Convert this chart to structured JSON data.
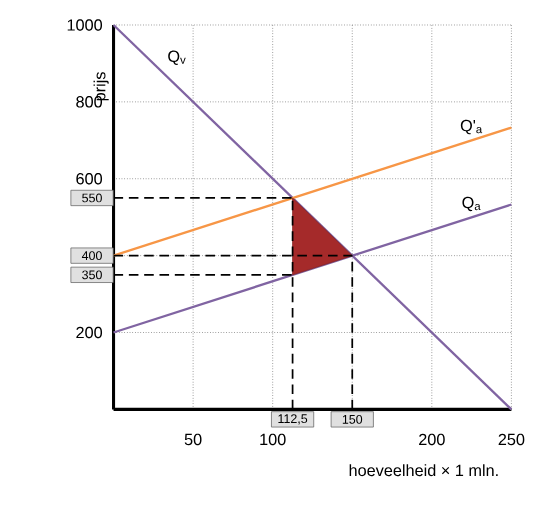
{
  "chart_data": {
    "type": "line",
    "xlabel": "hoeveelheid × 1 mln.",
    "ylabel": "prijs",
    "xlim": [
      0,
      250
    ],
    "ylim": [
      0,
      1000
    ],
    "xticks": [
      50,
      100,
      {
        "value": 150,
        "label": null
      },
      200,
      250
    ],
    "yticks": [
      200,
      {
        "value": 400,
        "label": null
      },
      600,
      800,
      1000
    ],
    "grid": true,
    "marker": "none",
    "line_style": "solid",
    "series": [
      {
        "name": "Q$_{v}$",
        "color": "#8064a2",
        "x": [
          0,
          250
        ],
        "values": [
          1000,
          0
        ]
      },
      {
        "name": "Q'$_{a}$",
        "color": "#f79646",
        "x": [
          0,
          250
        ],
        "values": [
          400,
          733
        ]
      },
      {
        "name": "Q$_{a}$",
        "color": "#8064a2",
        "x": [
          0,
          250
        ],
        "values": [
          200,
          533
        ]
      },
      {
        "type": "area",
        "color": "#a52a2a",
        "x": [
          112.5,
          112.5,
          150
        ],
        "values": [
          550,
          350,
          400
        ]
      }
    ],
    "ref_lines": [
      {
        "axis": "y",
        "value": 550,
        "label": "550",
        "line_style": "dashed"
      },
      {
        "axis": "y",
        "value": 400,
        "label": "400",
        "line_style": "dashed"
      },
      {
        "axis": "y",
        "value": 350,
        "label": "350",
        "line_style": "dashed"
      },
      {
        "axis": "x",
        "value": 112.5,
        "label": "112,5",
        "line_style": "dashed"
      },
      {
        "axis": "x",
        "value": 150,
        "label": "150",
        "line_style": "dashed"
      }
    ]
  }
}
